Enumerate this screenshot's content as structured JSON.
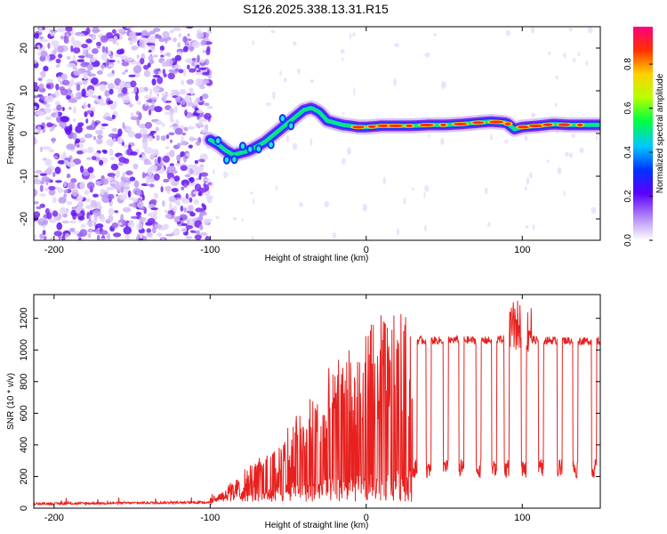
{
  "title": "S126.2025.338.13.31.R15",
  "spectrogram": {
    "xlabel": "Height of straight line (km)",
    "ylabel": "Frequency (Hz)",
    "xlim": [
      -213,
      150
    ],
    "ylim": [
      -25,
      25
    ],
    "xticks": [
      -200,
      -100,
      0,
      100
    ],
    "yticks": [
      -20,
      -10,
      0,
      10,
      20
    ],
    "colorbar_label": "Normalized spectral amplitude",
    "colorbar_ticks": [
      0.0,
      0.2,
      0.4,
      0.6,
      0.8
    ],
    "colorbar_range": [
      0,
      0.97
    ],
    "noise_region_end_km": -100,
    "ridge": {
      "x": [
        -100,
        -95,
        -90,
        -85,
        -80,
        -75,
        -70,
        -65,
        -60,
        -55,
        -50,
        -45,
        -40,
        -35,
        -30,
        -25,
        -20,
        -15,
        -10,
        -5,
        0,
        10,
        20,
        30,
        40,
        50,
        60,
        70,
        80,
        90,
        95,
        100,
        110,
        120,
        130,
        140,
        150
      ],
      "freq_hz": [
        -1.5,
        -2.5,
        -4,
        -5,
        -4.5,
        -4,
        -3,
        -2,
        -0.5,
        1,
        2.5,
        4,
        5.5,
        6,
        5,
        3,
        2.5,
        2,
        1.8,
        1.5,
        1.5,
        1.8,
        1.8,
        1.8,
        2,
        2,
        2.2,
        2.5,
        2.8,
        2.5,
        1,
        1.5,
        1.8,
        2.2,
        2,
        2,
        2
      ]
    }
  },
  "snr": {
    "xlabel": "Height of straight line (km)",
    "ylabel": "SNR (10 * v/v)",
    "xlim": [
      -213,
      150
    ],
    "ylim": [
      0,
      1350
    ],
    "xticks": [
      -200,
      -100,
      0,
      100
    ],
    "yticks": [
      0,
      200,
      400,
      600,
      800,
      1000,
      1200
    ],
    "line_color": "#e8201e",
    "envelope": {
      "x": [
        -213,
        -100,
        -90,
        -80,
        -70,
        -60,
        -50,
        -40,
        -30,
        -20,
        -10,
        0,
        10,
        20,
        30,
        40,
        50,
        60,
        70,
        80,
        90,
        100,
        110,
        120,
        130,
        140,
        150
      ],
      "y": [
        20,
        30,
        120,
        180,
        260,
        330,
        430,
        540,
        640,
        760,
        860,
        920,
        980,
        1040,
        1060,
        1060,
        1060,
        1065,
        1060,
        1060,
        1070,
        1080,
        1060,
        1060,
        1060,
        1055,
        1055
      ]
    },
    "dropouts_km": [
      22,
      31,
      40,
      51,
      61,
      72,
      82,
      90,
      101,
      112,
      124,
      134,
      146
    ],
    "dropout_level": 250
  }
}
